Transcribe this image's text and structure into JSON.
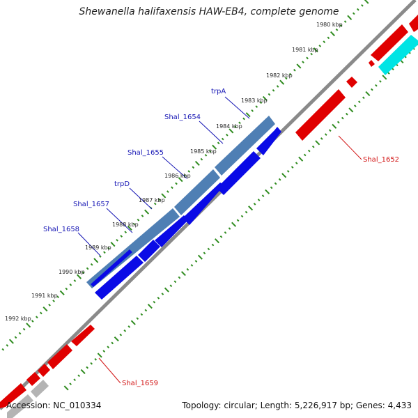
{
  "title": "Shewanella halifaxensis HAW-EB4, complete genome",
  "accession": "Accession: NC_010334",
  "summary": "Topology: circular; Length: 5,226,917 bp; Genes: 4,433",
  "colors": {
    "backbone": "#8a8a8a",
    "tick": "#2e8b1e",
    "gene_blue": "#0a0ae6",
    "gene_steel": "#4f7fb4",
    "gene_red": "#e00000",
    "gene_cyan": "#00e4e4",
    "gene_grey": "#b4b4b4",
    "label_blue": "#1414b4",
    "label_red": "#d21414"
  },
  "kbp_ticks": [
    {
      "label": "1980 kbp"
    },
    {
      "label": "1981 kbp"
    },
    {
      "label": "1982 kbp"
    },
    {
      "label": "1983 kbp"
    },
    {
      "label": "1984 kbp"
    },
    {
      "label": "1985 kbp"
    },
    {
      "label": "1986 kbp"
    },
    {
      "label": "1987 kbp"
    },
    {
      "label": "1988 kbp"
    },
    {
      "label": "1989 kbp"
    },
    {
      "label": "1990 kbp"
    },
    {
      "label": "1991 kbp"
    },
    {
      "label": "1992 kbp"
    }
  ],
  "gene_labels": [
    {
      "name": "trpA",
      "color": "blue"
    },
    {
      "name": "Shal_1654",
      "color": "blue"
    },
    {
      "name": "Shal_1655",
      "color": "blue"
    },
    {
      "name": "trpD",
      "color": "blue"
    },
    {
      "name": "Shal_1657",
      "color": "blue"
    },
    {
      "name": "Shal_1658",
      "color": "blue"
    },
    {
      "name": "Shal_1652",
      "color": "red"
    },
    {
      "name": "Shal_1659",
      "color": "red"
    }
  ]
}
